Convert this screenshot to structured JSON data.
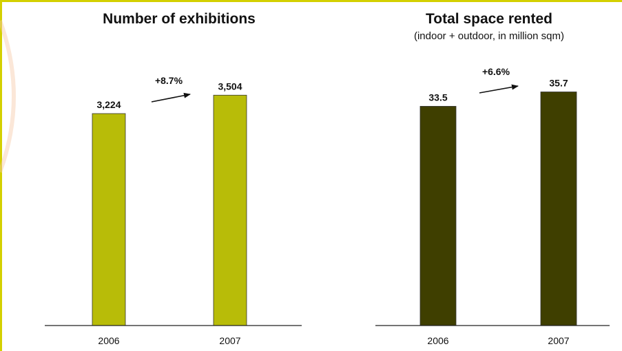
{
  "colors": {
    "frame": "#d4d000",
    "decor": "#f6c9a8",
    "axis": "#222222",
    "arrow": "#111111"
  },
  "chart_data": [
    {
      "type": "bar",
      "title": "Number of exhibitions",
      "subtitle": "",
      "categories": [
        "2006",
        "2007"
      ],
      "values": [
        3224,
        3504
      ],
      "value_labels": [
        "3,224",
        "3,504"
      ],
      "growth_label": "+8.7%",
      "bar_color": "#b8bc08",
      "ylim": [
        0,
        3800
      ]
    },
    {
      "type": "bar",
      "title": "Total space rented",
      "subtitle": "(indoor + outdoor, in million sqm)",
      "categories": [
        "2006",
        "2007"
      ],
      "values": [
        33.5,
        35.7
      ],
      "value_labels": [
        "33.5",
        "35.7"
      ],
      "growth_label": "+6.6%",
      "bar_color": "#3f3f00",
      "ylim": [
        0,
        38.7
      ]
    }
  ]
}
